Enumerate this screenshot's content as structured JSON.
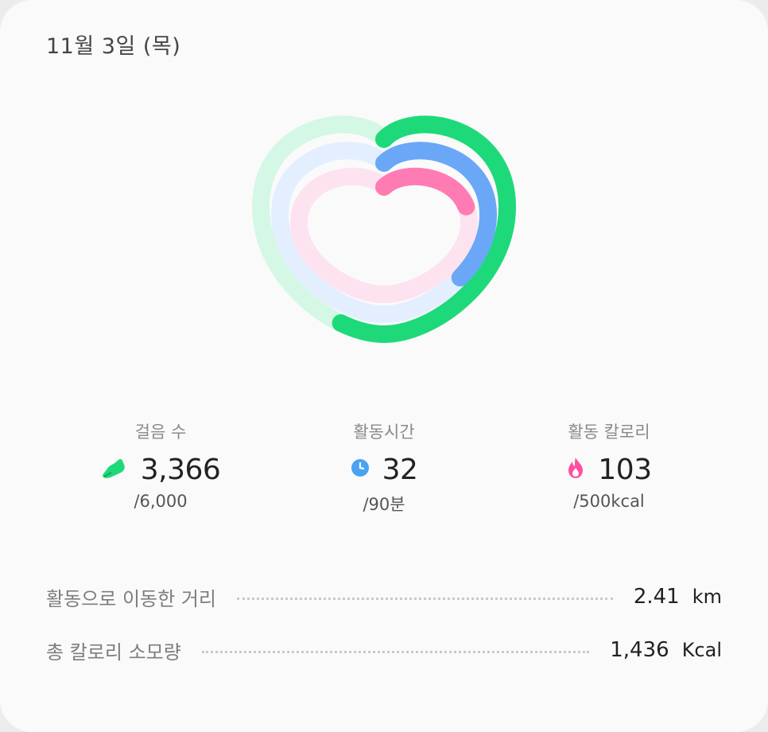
{
  "header": {
    "date": "11월 3일 (목)"
  },
  "heart": {
    "rings": [
      {
        "name": "steps",
        "color": "#1ed97a",
        "track_color": "#d5f7e5",
        "progress": 0.561
      },
      {
        "name": "active_time",
        "color": "#6aa8f7",
        "track_color": "#e3efff",
        "progress": 0.356
      },
      {
        "name": "active_calories",
        "color": "#ff7bb3",
        "track_color": "#fde3ef",
        "progress": 0.206
      }
    ]
  },
  "stats": {
    "steps": {
      "label": "걸음 수",
      "value": "3,366",
      "goal": "/6,000",
      "icon": "shoe-icon",
      "color": "#1ed97a"
    },
    "active_time": {
      "label": "활동시간",
      "value": "32",
      "goal": "/90분",
      "icon": "clock-icon",
      "color": "#4aa3f0"
    },
    "active_calories": {
      "label": "활동 칼로리",
      "value": "103",
      "goal": "/500kcal",
      "icon": "flame-icon",
      "color": "#ff4fa0"
    }
  },
  "details": {
    "distance": {
      "label": "활동으로 이동한 거리",
      "value": "2.41",
      "unit": "km"
    },
    "total_calories": {
      "label": "총 칼로리 소모량",
      "value": "1,436",
      "unit": "Kcal"
    }
  }
}
